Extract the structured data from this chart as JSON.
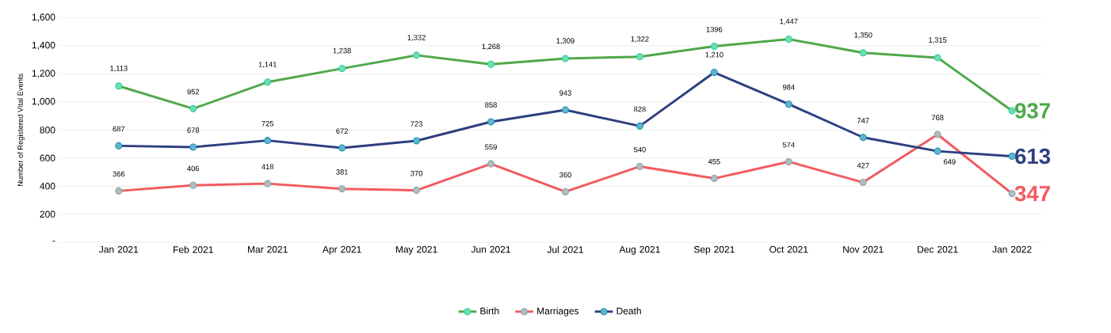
{
  "chart_data": {
    "type": "line",
    "ylabel": "Number of Registered Vital Events",
    "categories": [
      "Jan 2021",
      "Feb 2021",
      "Mar 2021",
      "Apr 2021",
      "May 2021",
      "Jun 2021",
      "Jul 2021",
      "Aug 2021",
      "Sep 2021",
      "Oct 2021",
      "Nov 2021",
      "Dec 2021",
      "Jan 2022"
    ],
    "series": [
      {
        "name": "Birth",
        "color": "#4fa84a",
        "values": [
          1113,
          952,
          1141,
          1238,
          1332,
          1268,
          1309,
          1322,
          1396,
          1447,
          1350,
          1315,
          937
        ],
        "value_labels": [
          "1,113",
          "952",
          "1,141",
          "1,238",
          "1,332",
          "1,268",
          "1,309",
          "1,322",
          "1396",
          "1,447",
          "1,350",
          "1,315",
          "937"
        ]
      },
      {
        "name": "Marriages",
        "color": "#f25a5f",
        "values": [
          366,
          406,
          418,
          381,
          370,
          559,
          360,
          540,
          455,
          574,
          427,
          768,
          347
        ],
        "value_labels": [
          "366",
          "406",
          "418",
          "381",
          "370",
          "559",
          "360",
          "540",
          "455",
          "574",
          "427",
          "768",
          "347"
        ]
      },
      {
        "name": "Death",
        "color": "#2e3f80",
        "values": [
          687,
          678,
          725,
          672,
          723,
          858,
          943,
          828,
          1210,
          984,
          747,
          649,
          613
        ],
        "value_labels": [
          "687",
          "678",
          "725",
          "672",
          "723",
          "858",
          "943",
          "828",
          "1,210",
          "984",
          "747",
          "649",
          "613"
        ]
      }
    ],
    "ylim": [
      0,
      1600
    ],
    "yticks": [
      {
        "value": 0,
        "label": "-"
      },
      {
        "value": 200,
        "label": "200"
      },
      {
        "value": 400,
        "label": "400"
      },
      {
        "value": 600,
        "label": "600"
      },
      {
        "value": 800,
        "label": "800"
      },
      {
        "value": 1000,
        "label": "1,000"
      },
      {
        "value": 1200,
        "label": "1,200"
      },
      {
        "value": 1400,
        "label": "1,400"
      },
      {
        "value": 1600,
        "label": "1,600"
      }
    ],
    "grid": "y",
    "legend": "bottom",
    "marker": "circle",
    "line_style": "solid"
  }
}
